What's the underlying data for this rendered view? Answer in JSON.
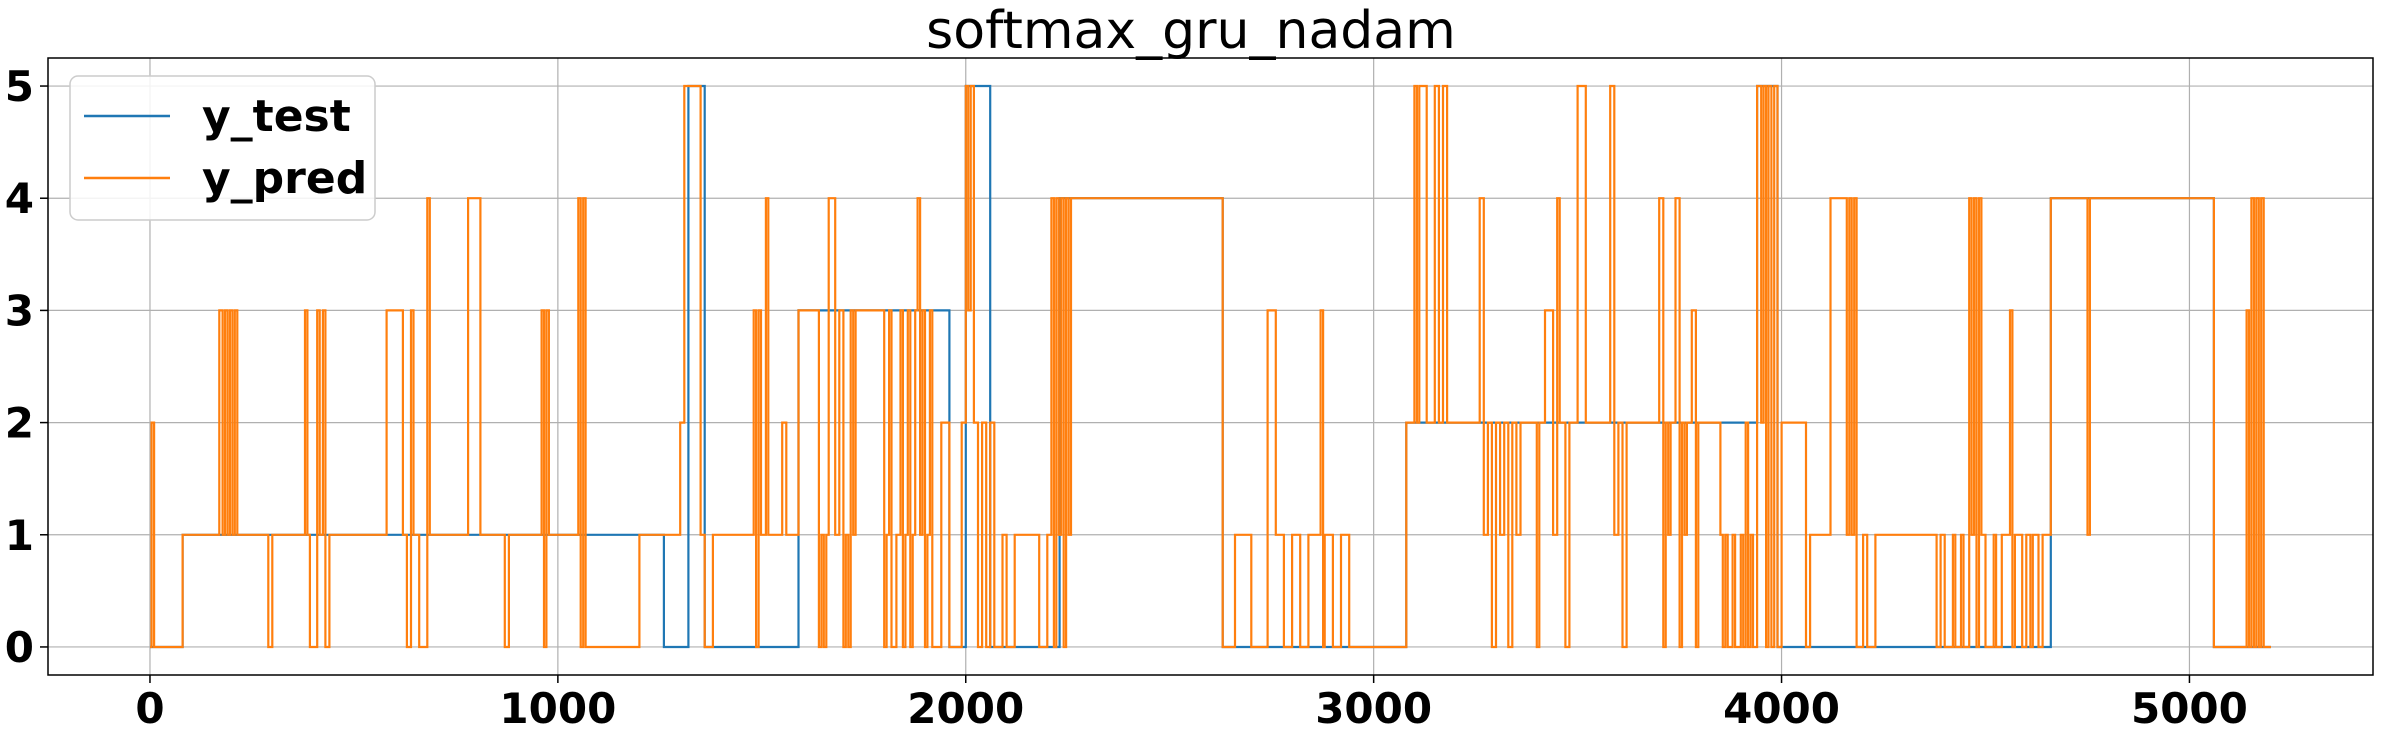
{
  "chart_data": {
    "type": "line",
    "title": "softmax_gru_nadam",
    "xlabel": "",
    "ylabel": "",
    "xlim": [
      -250,
      5450
    ],
    "ylim": [
      -0.25,
      5.25
    ],
    "xticks": [
      0,
      1000,
      2000,
      3000,
      4000,
      5000
    ],
    "xtick_labels": [
      "0",
      "1000",
      "2000",
      "3000",
      "4000",
      "5000"
    ],
    "yticks": [
      0,
      1,
      2,
      3,
      4,
      5
    ],
    "ytick_labels": [
      "0",
      "1",
      "2",
      "3",
      "4",
      "5"
    ],
    "grid": true,
    "legend_position": "upper-left",
    "series": [
      {
        "name": "y_test",
        "color": "#1f77b4",
        "steps": [
          [
            0,
            0
          ],
          [
            80,
            1
          ],
          [
            1260,
            0
          ],
          [
            1320,
            5
          ],
          [
            1360,
            0
          ],
          [
            1590,
            3
          ],
          [
            1960,
            0
          ],
          [
            2000,
            5
          ],
          [
            2060,
            0
          ],
          [
            2230,
            4
          ],
          [
            2630,
            0
          ],
          [
            3080,
            2
          ],
          [
            3940,
            5
          ],
          [
            3990,
            0
          ],
          [
            4660,
            4
          ],
          [
            5060,
            0
          ],
          [
            5200,
            0
          ]
        ]
      },
      {
        "name": "y_pred",
        "color": "#ff7f0e",
        "steps": [
          [
            0,
            0
          ],
          [
            4,
            2
          ],
          [
            10,
            0
          ],
          [
            80,
            1
          ],
          [
            170,
            3
          ],
          [
            178,
            1
          ],
          [
            184,
            3
          ],
          [
            190,
            1
          ],
          [
            196,
            3
          ],
          [
            202,
            1
          ],
          [
            208,
            3
          ],
          [
            214,
            1
          ],
          [
            290,
            0
          ],
          [
            300,
            1
          ],
          [
            380,
            3
          ],
          [
            386,
            1
          ],
          [
            392,
            0
          ],
          [
            410,
            3
          ],
          [
            416,
            1
          ],
          [
            424,
            3
          ],
          [
            430,
            0
          ],
          [
            440,
            1
          ],
          [
            580,
            3
          ],
          [
            620,
            1
          ],
          [
            630,
            0
          ],
          [
            640,
            3
          ],
          [
            646,
            1
          ],
          [
            660,
            0
          ],
          [
            680,
            4
          ],
          [
            686,
            1
          ],
          [
            780,
            4
          ],
          [
            810,
            1
          ],
          [
            870,
            0
          ],
          [
            880,
            1
          ],
          [
            960,
            3
          ],
          [
            966,
            0
          ],
          [
            972,
            3
          ],
          [
            978,
            1
          ],
          [
            1050,
            4
          ],
          [
            1056,
            0
          ],
          [
            1062,
            4
          ],
          [
            1068,
            0
          ],
          [
            1200,
            1
          ],
          [
            1300,
            2
          ],
          [
            1310,
            5
          ],
          [
            1350,
            1
          ],
          [
            1360,
            0
          ],
          [
            1380,
            1
          ],
          [
            1480,
            3
          ],
          [
            1486,
            0
          ],
          [
            1492,
            3
          ],
          [
            1498,
            1
          ],
          [
            1510,
            4
          ],
          [
            1516,
            1
          ],
          [
            1550,
            2
          ],
          [
            1560,
            1
          ],
          [
            1590,
            3
          ],
          [
            1640,
            0
          ],
          [
            1646,
            1
          ],
          [
            1652,
            0
          ],
          [
            1658,
            1
          ],
          [
            1664,
            4
          ],
          [
            1680,
            1
          ],
          [
            1690,
            3
          ],
          [
            1700,
            0
          ],
          [
            1706,
            1
          ],
          [
            1712,
            0
          ],
          [
            1718,
            3
          ],
          [
            1724,
            1
          ],
          [
            1730,
            3
          ],
          [
            1800,
            0
          ],
          [
            1806,
            1
          ],
          [
            1812,
            3
          ],
          [
            1818,
            0
          ],
          [
            1830,
            1
          ],
          [
            1840,
            3
          ],
          [
            1846,
            0
          ],
          [
            1852,
            1
          ],
          [
            1858,
            3
          ],
          [
            1864,
            0
          ],
          [
            1870,
            1
          ],
          [
            1876,
            3
          ],
          [
            1882,
            4
          ],
          [
            1888,
            1
          ],
          [
            1894,
            3
          ],
          [
            1900,
            0
          ],
          [
            1906,
            1
          ],
          [
            1912,
            3
          ],
          [
            1918,
            0
          ],
          [
            1940,
            2
          ],
          [
            1960,
            0
          ],
          [
            1990,
            2
          ],
          [
            2000,
            5
          ],
          [
            2006,
            3
          ],
          [
            2012,
            5
          ],
          [
            2020,
            2
          ],
          [
            2030,
            0
          ],
          [
            2040,
            2
          ],
          [
            2050,
            0
          ],
          [
            2060,
            2
          ],
          [
            2070,
            0
          ],
          [
            2090,
            1
          ],
          [
            2100,
            0
          ],
          [
            2120,
            1
          ],
          [
            2180,
            0
          ],
          [
            2200,
            1
          ],
          [
            2210,
            4
          ],
          [
            2216,
            0
          ],
          [
            2222,
            4
          ],
          [
            2228,
            1
          ],
          [
            2234,
            4
          ],
          [
            2240,
            0
          ],
          [
            2246,
            4
          ],
          [
            2252,
            1
          ],
          [
            2258,
            4
          ],
          [
            2630,
            0
          ],
          [
            2660,
            1
          ],
          [
            2700,
            0
          ],
          [
            2740,
            3
          ],
          [
            2760,
            1
          ],
          [
            2780,
            0
          ],
          [
            2800,
            1
          ],
          [
            2820,
            0
          ],
          [
            2840,
            1
          ],
          [
            2870,
            3
          ],
          [
            2876,
            0
          ],
          [
            2880,
            1
          ],
          [
            2900,
            0
          ],
          [
            2920,
            1
          ],
          [
            2940,
            0
          ],
          [
            3080,
            2
          ],
          [
            3100,
            5
          ],
          [
            3106,
            2
          ],
          [
            3112,
            5
          ],
          [
            3130,
            2
          ],
          [
            3150,
            5
          ],
          [
            3160,
            2
          ],
          [
            3170,
            5
          ],
          [
            3180,
            2
          ],
          [
            3260,
            4
          ],
          [
            3270,
            1
          ],
          [
            3280,
            2
          ],
          [
            3290,
            0
          ],
          [
            3300,
            2
          ],
          [
            3310,
            1
          ],
          [
            3320,
            2
          ],
          [
            3330,
            0
          ],
          [
            3340,
            2
          ],
          [
            3350,
            1
          ],
          [
            3360,
            2
          ],
          [
            3400,
            0
          ],
          [
            3406,
            2
          ],
          [
            3420,
            3
          ],
          [
            3440,
            1
          ],
          [
            3450,
            4
          ],
          [
            3456,
            2
          ],
          [
            3470,
            0
          ],
          [
            3480,
            2
          ],
          [
            3500,
            5
          ],
          [
            3520,
            2
          ],
          [
            3580,
            5
          ],
          [
            3590,
            1
          ],
          [
            3600,
            2
          ],
          [
            3610,
            0
          ],
          [
            3620,
            2
          ],
          [
            3700,
            4
          ],
          [
            3710,
            0
          ],
          [
            3716,
            2
          ],
          [
            3722,
            1
          ],
          [
            3728,
            2
          ],
          [
            3740,
            4
          ],
          [
            3750,
            0
          ],
          [
            3756,
            2
          ],
          [
            3762,
            1
          ],
          [
            3768,
            2
          ],
          [
            3780,
            3
          ],
          [
            3790,
            0
          ],
          [
            3796,
            2
          ],
          [
            3850,
            1
          ],
          [
            3856,
            0
          ],
          [
            3862,
            1
          ],
          [
            3868,
            0
          ],
          [
            3880,
            1
          ],
          [
            3886,
            0
          ],
          [
            3900,
            1
          ],
          [
            3906,
            0
          ],
          [
            3912,
            2
          ],
          [
            3918,
            0
          ],
          [
            3924,
            1
          ],
          [
            3930,
            0
          ],
          [
            3940,
            5
          ],
          [
            3950,
            2
          ],
          [
            3956,
            5
          ],
          [
            3962,
            0
          ],
          [
            3968,
            5
          ],
          [
            3975,
            0
          ],
          [
            3982,
            5
          ],
          [
            3990,
            0
          ],
          [
            4000,
            2
          ],
          [
            4060,
            0
          ],
          [
            4070,
            1
          ],
          [
            4120,
            4
          ],
          [
            4160,
            1
          ],
          [
            4166,
            4
          ],
          [
            4172,
            1
          ],
          [
            4178,
            4
          ],
          [
            4184,
            0
          ],
          [
            4200,
            1
          ],
          [
            4210,
            0
          ],
          [
            4230,
            1
          ],
          [
            4380,
            0
          ],
          [
            4390,
            1
          ],
          [
            4400,
            0
          ],
          [
            4420,
            1
          ],
          [
            4426,
            0
          ],
          [
            4440,
            1
          ],
          [
            4446,
            0
          ],
          [
            4460,
            4
          ],
          [
            4466,
            1
          ],
          [
            4472,
            4
          ],
          [
            4478,
            0
          ],
          [
            4484,
            4
          ],
          [
            4490,
            1
          ],
          [
            4500,
            0
          ],
          [
            4520,
            1
          ],
          [
            4526,
            0
          ],
          [
            4540,
            1
          ],
          [
            4560,
            3
          ],
          [
            4566,
            0
          ],
          [
            4572,
            1
          ],
          [
            4590,
            0
          ],
          [
            4600,
            1
          ],
          [
            4610,
            0
          ],
          [
            4616,
            1
          ],
          [
            4630,
            0
          ],
          [
            4640,
            1
          ],
          [
            4660,
            4
          ],
          [
            4750,
            1
          ],
          [
            4756,
            4
          ],
          [
            5060,
            0
          ],
          [
            5140,
            3
          ],
          [
            5146,
            0
          ],
          [
            5152,
            4
          ],
          [
            5158,
            0
          ],
          [
            5164,
            4
          ],
          [
            5170,
            0
          ],
          [
            5176,
            4
          ],
          [
            5182,
            0
          ],
          [
            5200,
            0
          ]
        ]
      }
    ]
  }
}
